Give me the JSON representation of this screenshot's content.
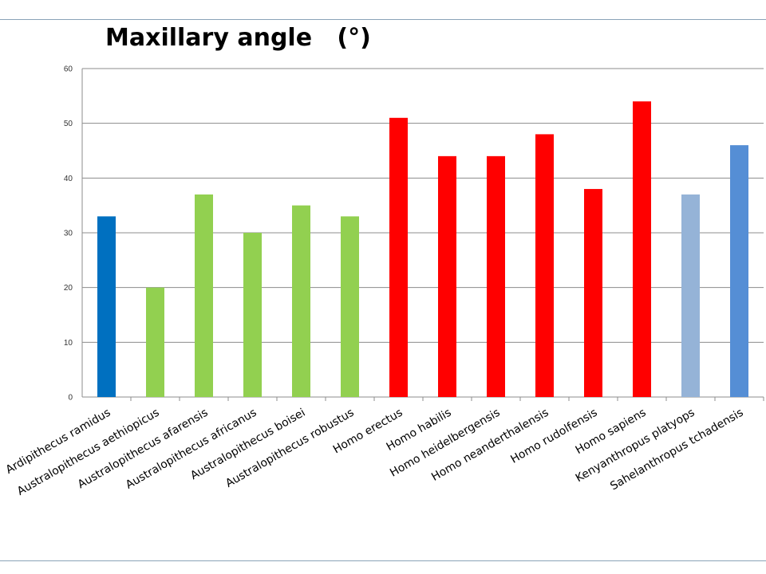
{
  "chart_data": {
    "type": "bar",
    "title": "Maxillary angle   (°)",
    "xlabel": "",
    "ylabel": "",
    "ylim": [
      0,
      60
    ],
    "yticks": [
      0,
      10,
      20,
      30,
      40,
      50,
      60
    ],
    "grid": true,
    "legend": "none",
    "categories": [
      "Ardipithecus ramidus",
      "Australopithecus aethiopicus",
      "Australopithecus afarensis",
      "Australopithecus africanus",
      "Australopithecus boisei",
      "Australopithecus robustus",
      "Homo erectus",
      "Homo habilis",
      "Homo heidelbergensis",
      "Homo neanderthalensis",
      "Homo rudolfensis",
      "Homo sapiens",
      "Kenyanthropus platyops",
      "Sahelanthropus tchadensis"
    ],
    "values": [
      33,
      20,
      37,
      30,
      35,
      33,
      51,
      44,
      44,
      48,
      38,
      54,
      37,
      46
    ],
    "colors": [
      "#0070c0",
      "#92d050",
      "#92d050",
      "#92d050",
      "#92d050",
      "#92d050",
      "#ff0000",
      "#ff0000",
      "#ff0000",
      "#ff0000",
      "#ff0000",
      "#ff0000",
      "#95b3d7",
      "#558ed5"
    ]
  }
}
